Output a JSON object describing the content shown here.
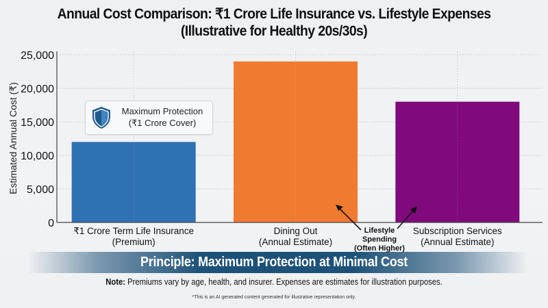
{
  "title_line1": "Annual Cost Comparison: ₹1 Crore Life Insurance vs. Lifestyle Expenses",
  "title_line2": "(Illustrative for Healthy 20s/30s)",
  "callout": {
    "line1": "Maximum Protection",
    "line2": "(₹1 Crore Cover)",
    "icon": "shield-icon"
  },
  "annotation": {
    "line1": "Lifestyle",
    "line2": "Spending",
    "line3": "(Often Higher)"
  },
  "banner": "Principle: Maximum Protection at Minimal Cost",
  "note": {
    "label": "Note:",
    "text": " Premiums vary by age, health, and insurer. Expenses are estimates for illustration purposes."
  },
  "disclaimer": "*This is an AI generated content generated for illustrative representation only.",
  "chart_data": {
    "type": "bar",
    "title": "Annual Cost Comparison: ₹1 Crore Life Insurance vs. Lifestyle Expenses (Illustrative for Healthy 20s/30s)",
    "xlabel": "",
    "ylabel": "Estimated Annual Cost (₹)",
    "ylim": [
      0,
      25000
    ],
    "yticks": [
      0,
      5000,
      10000,
      15000,
      20000,
      25000
    ],
    "ytick_labels": [
      "0",
      "5,000",
      "10,000",
      "15,000",
      "20,000",
      "25,000"
    ],
    "grid": true,
    "categories": [
      {
        "line1": "₹1 Crore Term Life Insurance",
        "line2": "(Premium)"
      },
      {
        "line1": "Dining Out",
        "line2": "(Annual Estimate)"
      },
      {
        "line1": "Subscription Services",
        "line2": "(Annual Estimate)"
      }
    ],
    "values": [
      12000,
      24000,
      18000
    ],
    "colors": [
      "#2e72b3",
      "#f07a2f",
      "#800a7c"
    ]
  }
}
